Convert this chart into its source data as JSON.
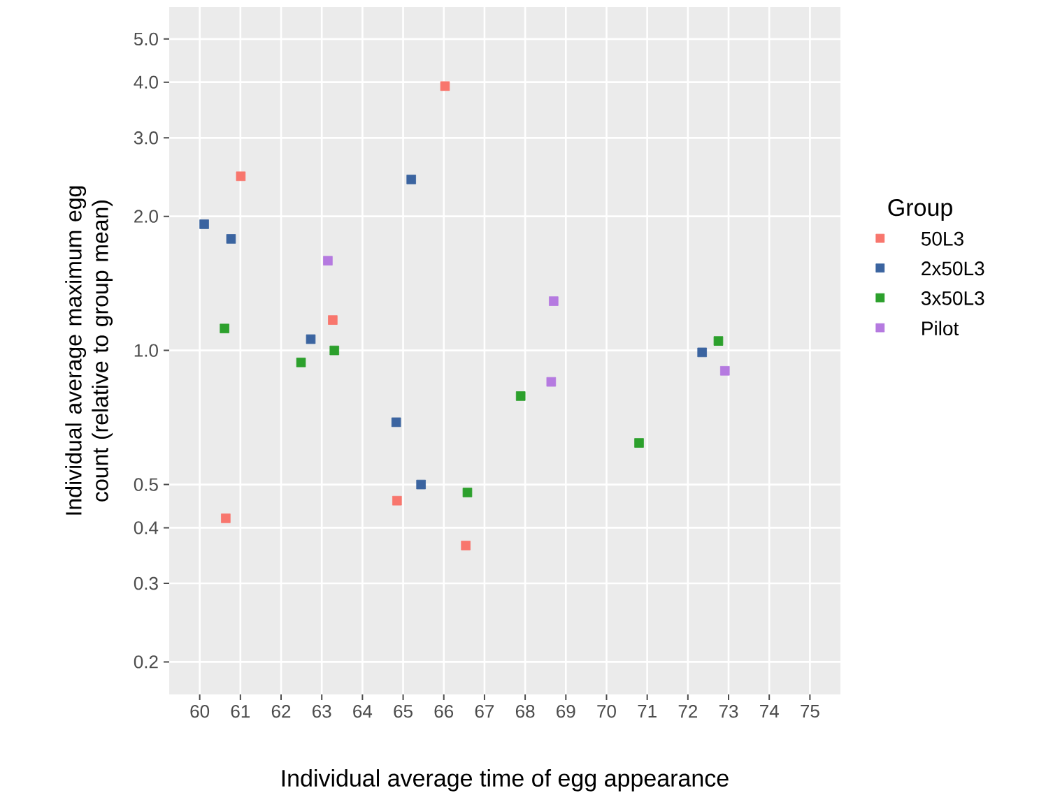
{
  "chart_data": {
    "type": "scatter",
    "xlabel": "Individual average time of egg appearance",
    "ylabel": "Individual average maximum egg count (relative to group mean)",
    "legend_title": "Group",
    "legend": "right",
    "grid": true,
    "marker": "square",
    "log": "y",
    "xlim": [
      59.25,
      75.75
    ],
    "ylim": [
      0.169,
      5.9
    ],
    "xticks": [
      60,
      61,
      62,
      63,
      64,
      65,
      66,
      67,
      68,
      69,
      70,
      71,
      72,
      73,
      74,
      75
    ],
    "yticks": [
      {
        "value": 0.2,
        "label": "0.2"
      },
      {
        "value": 0.3,
        "label": "0.3"
      },
      {
        "value": 0.4,
        "label": "0.4"
      },
      {
        "value": 0.5,
        "label": "0.5"
      },
      {
        "value": 1,
        "label": "1.0"
      },
      {
        "value": 2,
        "label": "2.0"
      },
      {
        "value": 3,
        "label": "3.0"
      },
      {
        "value": 4,
        "label": "4.0"
      },
      {
        "value": 5,
        "label": "5.0"
      }
    ],
    "series": [
      {
        "name": "50L3",
        "color": "#f8766d",
        "x": [
          61.01,
          66.03,
          63.27,
          60.64,
          64.85,
          66.54
        ],
        "values": [
          2.46,
          3.92,
          1.17,
          0.42,
          0.46,
          0.365
        ]
      },
      {
        "name": "2x50L3",
        "color": "#3b64a0",
        "x": [
          60.11,
          60.77,
          65.2,
          62.73,
          64.83,
          65.44,
          72.35
        ],
        "values": [
          1.92,
          1.78,
          2.42,
          1.06,
          0.69,
          0.5,
          0.99
        ]
      },
      {
        "name": "3x50L3",
        "color": "#2ca02c",
        "x": [
          60.61,
          62.49,
          63.31,
          66.58,
          67.89,
          70.8,
          72.75
        ],
        "values": [
          1.12,
          0.94,
          1.0,
          0.48,
          0.79,
          0.62,
          1.05
        ]
      },
      {
        "name": "Pilot",
        "color": "#b57ae0",
        "x": [
          63.15,
          68.7,
          68.64,
          72.91
        ],
        "values": [
          1.59,
          1.29,
          0.85,
          0.9
        ]
      }
    ]
  }
}
